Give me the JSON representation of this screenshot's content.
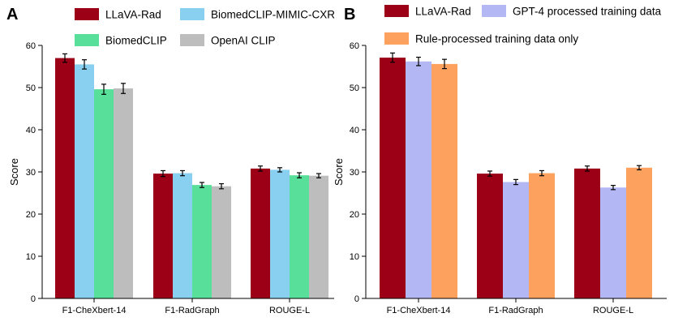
{
  "chart_data": [
    {
      "type": "bar",
      "panel_label": "A",
      "title": "",
      "xlabel": "",
      "ylabel": "Score",
      "ylim": [
        0,
        60
      ],
      "yticks": [
        0,
        10,
        20,
        30,
        40,
        50,
        60
      ],
      "categories": [
        "F1-CheXbert-14",
        "F1-RadGraph",
        "ROUGE-L"
      ],
      "series": [
        {
          "name": "LLaVA-Rad",
          "color": "#9b0016",
          "values": [
            57.0,
            29.6,
            30.8
          ],
          "errors": [
            1.0,
            0.7,
            0.6
          ]
        },
        {
          "name": "BiomedCLIP-MIMIC-CXR",
          "color": "#89cff0",
          "values": [
            55.5,
            29.7,
            30.5
          ],
          "errors": [
            1.1,
            0.6,
            0.5
          ]
        },
        {
          "name": "BiomedCLIP",
          "color": "#58df9a",
          "values": [
            49.6,
            26.9,
            29.2
          ],
          "errors": [
            1.2,
            0.6,
            0.6
          ]
        },
        {
          "name": "OpenAI CLIP",
          "color": "#bdbdbd",
          "values": [
            49.8,
            26.6,
            29.1
          ],
          "errors": [
            1.2,
            0.6,
            0.5
          ]
        }
      ]
    },
    {
      "type": "bar",
      "panel_label": "B",
      "title": "",
      "xlabel": "",
      "ylabel": "Score",
      "ylim": [
        0,
        60
      ],
      "yticks": [
        0,
        10,
        20,
        30,
        40,
        50,
        60
      ],
      "categories": [
        "F1-CheXbert-14",
        "F1-RadGraph",
        "ROUGE-L"
      ],
      "series": [
        {
          "name": "LLaVA-Rad",
          "color": "#9b0016",
          "values": [
            57.1,
            29.6,
            30.8
          ],
          "errors": [
            1.1,
            0.6,
            0.6
          ]
        },
        {
          "name": "GPT-4 processed training data",
          "color": "#b3b8f5",
          "values": [
            56.2,
            27.6,
            26.3
          ],
          "errors": [
            1.0,
            0.6,
            0.5
          ]
        },
        {
          "name": "Rule-processed training data only",
          "color": "#fca15e",
          "values": [
            55.6,
            29.7,
            31.0
          ],
          "errors": [
            1.1,
            0.6,
            0.5
          ]
        }
      ]
    }
  ]
}
